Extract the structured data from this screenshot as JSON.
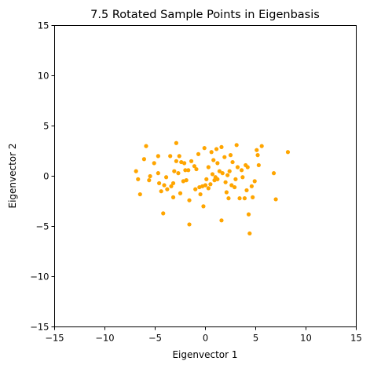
{
  "chart_data": {
    "type": "scatter",
    "title": "7.5 Rotated Sample Points in Eigenbasis",
    "xlabel": "Eigenvector 1",
    "ylabel": "Eigenvector 2",
    "xlim": [
      -15,
      15
    ],
    "ylim": [
      -15,
      15
    ],
    "xticks": [
      -15,
      -10,
      -5,
      0,
      5,
      10,
      15
    ],
    "yticks": [
      -15,
      -10,
      -5,
      0,
      5,
      10,
      15
    ],
    "xtick_labels": [
      "−15",
      "−10",
      "−5",
      "0",
      "5",
      "10",
      "15"
    ],
    "ytick_labels": [
      "−15",
      "−10",
      "−5",
      "0",
      "5",
      "10",
      "15"
    ],
    "grid": false,
    "marker_color": "#ffa500",
    "series": [
      {
        "points": [
          [
            -6.9,
            0.5
          ],
          [
            -6.7,
            -0.3
          ],
          [
            -6.5,
            -1.8
          ],
          [
            -6.1,
            1.7
          ],
          [
            -5.9,
            3.0
          ],
          [
            -5.6,
            -0.4
          ],
          [
            -5.5,
            0.0
          ],
          [
            -5.1,
            1.3
          ],
          [
            -4.7,
            2.0
          ],
          [
            -4.7,
            0.3
          ],
          [
            -4.6,
            -0.7
          ],
          [
            -4.4,
            -1.5
          ],
          [
            -4.2,
            -3.7
          ],
          [
            -4.1,
            -0.9
          ],
          [
            -3.9,
            -0.1
          ],
          [
            -3.8,
            -1.3
          ],
          [
            -3.5,
            2.0
          ],
          [
            -3.4,
            -1.0
          ],
          [
            -3.2,
            -0.7
          ],
          [
            -3.2,
            -2.1
          ],
          [
            -3.1,
            0.5
          ],
          [
            -2.9,
            3.3
          ],
          [
            -2.9,
            1.5
          ],
          [
            -2.7,
            0.3
          ],
          [
            -2.6,
            2.0
          ],
          [
            -2.5,
            -1.7
          ],
          [
            -2.4,
            1.4
          ],
          [
            -2.2,
            -0.5
          ],
          [
            -2.1,
            1.3
          ],
          [
            -2.0,
            0.6
          ],
          [
            -1.9,
            -0.4
          ],
          [
            -1.7,
            0.6
          ],
          [
            -1.6,
            -2.4
          ],
          [
            -1.6,
            -4.8
          ],
          [
            -1.4,
            1.5
          ],
          [
            -1.1,
            1.0
          ],
          [
            -1.0,
            -1.3
          ],
          [
            -0.9,
            0.7
          ],
          [
            -0.7,
            2.2
          ],
          [
            -0.6,
            -1.1
          ],
          [
            -0.5,
            -1.8
          ],
          [
            -0.3,
            -1.0
          ],
          [
            -0.2,
            -3.0
          ],
          [
            -0.1,
            2.8
          ],
          [
            0.0,
            -0.9
          ],
          [
            0.1,
            -0.3
          ],
          [
            0.3,
            -1.2
          ],
          [
            0.3,
            0.9
          ],
          [
            0.5,
            -0.8
          ],
          [
            0.6,
            2.4
          ],
          [
            0.7,
            0.2
          ],
          [
            0.8,
            1.6
          ],
          [
            0.9,
            -0.4
          ],
          [
            1.0,
            -0.1
          ],
          [
            1.1,
            2.7
          ],
          [
            1.2,
            -0.3
          ],
          [
            1.2,
            1.3
          ],
          [
            1.4,
            0.5
          ],
          [
            1.6,
            -4.4
          ],
          [
            1.6,
            2.9
          ],
          [
            1.7,
            0.3
          ],
          [
            1.9,
            1.9
          ],
          [
            2.0,
            -0.6
          ],
          [
            2.1,
            -1.6
          ],
          [
            2.2,
            0.1
          ],
          [
            2.3,
            -2.2
          ],
          [
            2.4,
            0.5
          ],
          [
            2.5,
            2.1
          ],
          [
            2.6,
            -0.9
          ],
          [
            2.7,
            1.4
          ],
          [
            2.9,
            -1.1
          ],
          [
            3.0,
            -0.3
          ],
          [
            3.1,
            3.1
          ],
          [
            3.2,
            0.9
          ],
          [
            3.4,
            -2.2
          ],
          [
            3.6,
            0.6
          ],
          [
            3.7,
            -0.1
          ],
          [
            3.9,
            -2.2
          ],
          [
            4.0,
            1.1
          ],
          [
            4.1,
            -1.4
          ],
          [
            4.2,
            0.9
          ],
          [
            4.3,
            -3.8
          ],
          [
            4.4,
            -5.7
          ],
          [
            4.6,
            -1.0
          ],
          [
            4.7,
            -2.1
          ],
          [
            4.9,
            -0.5
          ],
          [
            5.1,
            2.6
          ],
          [
            5.2,
            2.1
          ],
          [
            5.3,
            1.1
          ],
          [
            5.6,
            3.0
          ],
          [
            6.8,
            0.3
          ],
          [
            7.0,
            -2.3
          ],
          [
            8.2,
            2.4
          ]
        ]
      }
    ]
  }
}
